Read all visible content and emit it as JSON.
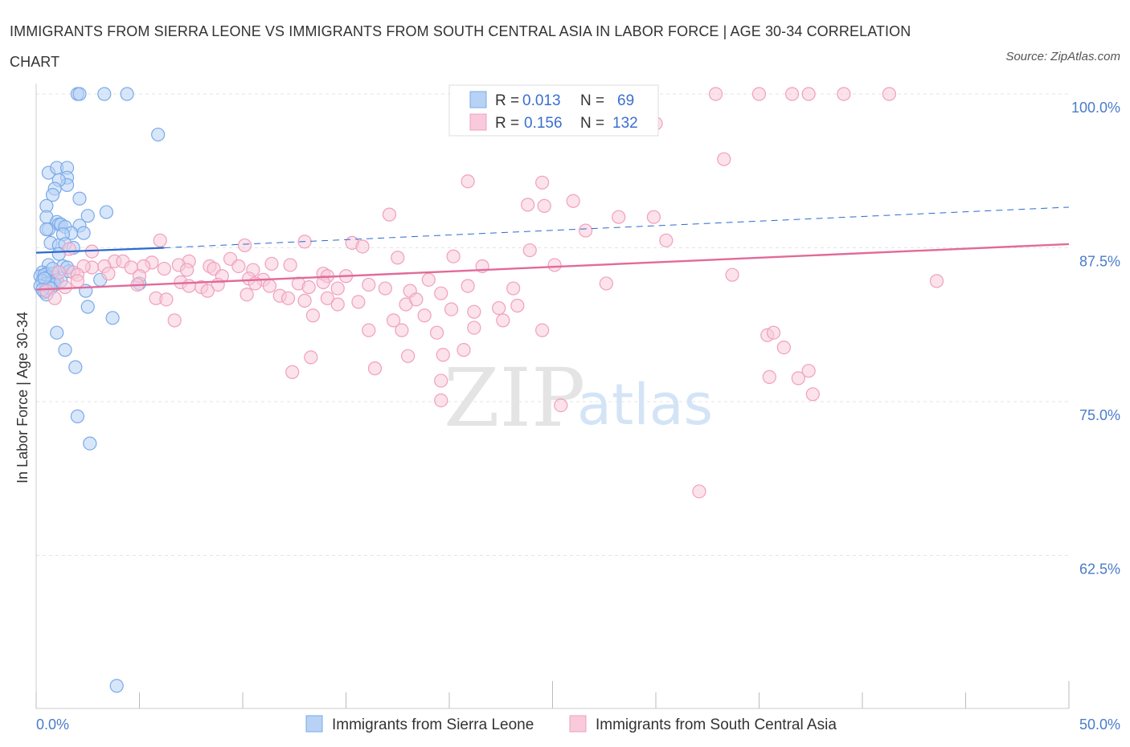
{
  "title": "IMMIGRANTS FROM SIERRA LEONE VS IMMIGRANTS FROM SOUTH CENTRAL ASIA IN LABOR FORCE | AGE 30-34 CORRELATION CHART",
  "source": "Source: ZipAtlas.com",
  "watermark": {
    "zip": "ZIP",
    "atlas": "atlas"
  },
  "chart_data": {
    "type": "scatter",
    "ylabel": "In Labor Force | Age 30-34",
    "xlabel": "",
    "xlim": [
      0,
      50
    ],
    "ylim": [
      50,
      102
    ],
    "x_tick_labels": [
      "0.0%",
      "50.0%"
    ],
    "y_ticks": [
      100,
      87.5,
      75,
      62.5
    ],
    "y_tick_labels": [
      "100.0%",
      "87.5%",
      "75.0%",
      "62.5%"
    ],
    "legend": {
      "stats": [
        {
          "r_label": "R =",
          "r_value": "0.013",
          "n_label": "N =",
          "n_value": "69"
        },
        {
          "r_label": "R =",
          "r_value": "0.156",
          "n_label": "N =",
          "n_value": "132"
        }
      ]
    },
    "series": [
      {
        "name": "Immigrants from Sierra Leone",
        "color": "#7aaae8",
        "fill": "#b8d2f5",
        "line_color": "#2a6ad0",
        "trend": {
          "x0": 0,
          "y0": 87.1,
          "x1": 6.2,
          "y1": 87.5,
          "dash_x1": 50,
          "dash_y1": 90.8
        },
        "points": [
          [
            2.0,
            100
          ],
          [
            2.1,
            100
          ],
          [
            3.3,
            100
          ],
          [
            4.4,
            100
          ],
          [
            5.9,
            96.7
          ],
          [
            0.6,
            93.6
          ],
          [
            1.0,
            94.0
          ],
          [
            1.5,
            94.0
          ],
          [
            1.5,
            93.2
          ],
          [
            1.5,
            92.6
          ],
          [
            1.1,
            93.0
          ],
          [
            0.9,
            92.3
          ],
          [
            0.8,
            91.8
          ],
          [
            2.1,
            91.5
          ],
          [
            0.5,
            90.9
          ],
          [
            3.4,
            90.4
          ],
          [
            2.5,
            90.1
          ],
          [
            0.5,
            90.0
          ],
          [
            1.0,
            89.6
          ],
          [
            1.1,
            89.4
          ],
          [
            1.2,
            89.4
          ],
          [
            2.1,
            89.3
          ],
          [
            1.4,
            89.2
          ],
          [
            0.6,
            89.0
          ],
          [
            0.5,
            89.0
          ],
          [
            1.7,
            88.7
          ],
          [
            2.3,
            88.7
          ],
          [
            1.3,
            88.6
          ],
          [
            0.7,
            87.9
          ],
          [
            1.1,
            87.7
          ],
          [
            1.4,
            87.8
          ],
          [
            1.8,
            87.5
          ],
          [
            1.1,
            87.0
          ],
          [
            0.6,
            86.1
          ],
          [
            0.3,
            85.5
          ],
          [
            0.5,
            85.4
          ],
          [
            0.8,
            85.4
          ],
          [
            0.2,
            85.2
          ],
          [
            0.4,
            85.3
          ],
          [
            0.6,
            85.1
          ],
          [
            0.9,
            85.1
          ],
          [
            1.0,
            84.9
          ],
          [
            0.3,
            84.8
          ],
          [
            0.5,
            84.6
          ],
          [
            0.7,
            84.6
          ],
          [
            0.9,
            84.5
          ],
          [
            0.2,
            84.4
          ],
          [
            0.6,
            84.3
          ],
          [
            3.1,
            84.9
          ],
          [
            5.0,
            84.6
          ],
          [
            0.4,
            83.9
          ],
          [
            2.4,
            84.0
          ],
          [
            0.5,
            83.7
          ],
          [
            2.5,
            82.7
          ],
          [
            3.7,
            81.8
          ],
          [
            1.0,
            80.6
          ],
          [
            1.4,
            79.2
          ],
          [
            1.9,
            77.8
          ],
          [
            2.0,
            73.8
          ],
          [
            2.6,
            71.6
          ],
          [
            3.9,
            51.9
          ],
          [
            1.3,
            86.0
          ],
          [
            0.8,
            85.8
          ],
          [
            1.6,
            85.6
          ],
          [
            0.4,
            85.0
          ],
          [
            0.7,
            84.2
          ],
          [
            1.2,
            84.8
          ],
          [
            0.3,
            84.1
          ],
          [
            1.5,
            85.9
          ]
        ]
      },
      {
        "name": "Immigrants from South Central Asia",
        "color": "#f0a0bc",
        "fill": "#f8cadb",
        "line_color": "#e26a98",
        "trend": {
          "x0": 0,
          "y0": 84.1,
          "x1": 50,
          "y1": 87.8
        },
        "points": [
          [
            32.9,
            100
          ],
          [
            35.0,
            100
          ],
          [
            36.6,
            100
          ],
          [
            37.4,
            100
          ],
          [
            39.1,
            100
          ],
          [
            41.3,
            100
          ],
          [
            30.0,
            97.6
          ],
          [
            33.3,
            94.7
          ],
          [
            20.9,
            92.9
          ],
          [
            24.5,
            92.8
          ],
          [
            26.0,
            91.3
          ],
          [
            23.8,
            91.0
          ],
          [
            24.6,
            90.9
          ],
          [
            17.1,
            90.2
          ],
          [
            28.2,
            90.0
          ],
          [
            29.9,
            90.0
          ],
          [
            26.6,
            88.9
          ],
          [
            6.0,
            88.1
          ],
          [
            13.0,
            88.0
          ],
          [
            10.1,
            87.7
          ],
          [
            15.3,
            87.9
          ],
          [
            30.5,
            88.1
          ],
          [
            15.8,
            87.6
          ],
          [
            23.9,
            87.3
          ],
          [
            1.6,
            87.4
          ],
          [
            2.7,
            87.2
          ],
          [
            7.4,
            86.4
          ],
          [
            9.4,
            86.6
          ],
          [
            17.5,
            86.7
          ],
          [
            20.2,
            86.8
          ],
          [
            5.6,
            86.3
          ],
          [
            3.8,
            86.4
          ],
          [
            4.2,
            86.4
          ],
          [
            6.9,
            86.1
          ],
          [
            8.4,
            86.0
          ],
          [
            9.8,
            86.0
          ],
          [
            11.4,
            86.2
          ],
          [
            12.3,
            86.1
          ],
          [
            3.3,
            86.0
          ],
          [
            4.6,
            85.9
          ],
          [
            5.2,
            86.0
          ],
          [
            2.7,
            85.9
          ],
          [
            2.3,
            86.0
          ],
          [
            6.2,
            85.8
          ],
          [
            7.3,
            85.7
          ],
          [
            8.6,
            85.8
          ],
          [
            10.5,
            85.7
          ],
          [
            1.1,
            85.5
          ],
          [
            1.8,
            85.5
          ],
          [
            2.0,
            85.3
          ],
          [
            3.5,
            85.4
          ],
          [
            5.0,
            85.2
          ],
          [
            9.0,
            85.2
          ],
          [
            10.3,
            85.0
          ],
          [
            11.0,
            84.9
          ],
          [
            13.9,
            85.4
          ],
          [
            14.1,
            85.2
          ],
          [
            15.0,
            85.2
          ],
          [
            19.0,
            84.9
          ],
          [
            21.6,
            86.0
          ],
          [
            25.1,
            86.1
          ],
          [
            33.7,
            85.3
          ],
          [
            7.0,
            84.7
          ],
          [
            8.0,
            84.3
          ],
          [
            8.8,
            84.5
          ],
          [
            10.6,
            84.6
          ],
          [
            11.3,
            84.4
          ],
          [
            12.7,
            84.6
          ],
          [
            13.2,
            84.3
          ],
          [
            13.9,
            84.7
          ],
          [
            14.6,
            84.2
          ],
          [
            16.1,
            84.5
          ],
          [
            16.9,
            84.2
          ],
          [
            18.1,
            84.0
          ],
          [
            19.6,
            83.8
          ],
          [
            20.9,
            84.4
          ],
          [
            23.1,
            84.2
          ],
          [
            4.9,
            84.5
          ],
          [
            0.5,
            84.0
          ],
          [
            0.9,
            83.4
          ],
          [
            1.4,
            84.3
          ],
          [
            2.0,
            84.8
          ],
          [
            5.8,
            83.4
          ],
          [
            6.3,
            83.3
          ],
          [
            7.4,
            84.4
          ],
          [
            8.3,
            84.0
          ],
          [
            10.2,
            83.7
          ],
          [
            11.8,
            83.6
          ],
          [
            12.2,
            83.4
          ],
          [
            13.0,
            83.2
          ],
          [
            14.1,
            83.4
          ],
          [
            14.6,
            82.9
          ],
          [
            15.6,
            83.1
          ],
          [
            17.9,
            82.9
          ],
          [
            18.4,
            83.3
          ],
          [
            20.1,
            82.5
          ],
          [
            21.2,
            82.3
          ],
          [
            22.4,
            82.6
          ],
          [
            23.3,
            82.8
          ],
          [
            13.4,
            82.0
          ],
          [
            18.8,
            82.0
          ],
          [
            6.7,
            81.6
          ],
          [
            17.3,
            81.6
          ],
          [
            22.6,
            81.6
          ],
          [
            16.1,
            80.8
          ],
          [
            17.7,
            80.8
          ],
          [
            19.4,
            80.6
          ],
          [
            21.2,
            81.0
          ],
          [
            24.5,
            80.8
          ],
          [
            35.4,
            80.4
          ],
          [
            35.7,
            80.6
          ],
          [
            36.2,
            79.4
          ],
          [
            20.7,
            79.2
          ],
          [
            18.0,
            78.7
          ],
          [
            19.7,
            78.8
          ],
          [
            13.3,
            78.6
          ],
          [
            12.4,
            77.4
          ],
          [
            16.4,
            77.7
          ],
          [
            35.5,
            77.0
          ],
          [
            36.9,
            76.9
          ],
          [
            37.4,
            77.5
          ],
          [
            37.6,
            75.6
          ],
          [
            19.6,
            76.7
          ],
          [
            19.6,
            75.1
          ],
          [
            25.4,
            74.7
          ],
          [
            32.1,
            67.7
          ],
          [
            43.6,
            84.8
          ],
          [
            27.6,
            84.6
          ]
        ]
      }
    ]
  }
}
